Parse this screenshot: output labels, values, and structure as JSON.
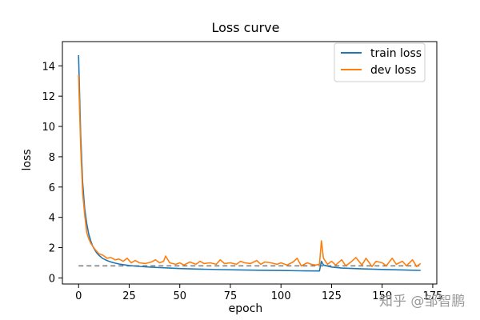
{
  "chart_data": {
    "type": "line",
    "title": "Loss curve",
    "xlabel": "epoch",
    "ylabel": "loss",
    "xlim": [
      -8,
      177
    ],
    "ylim": [
      -0.4,
      15.6
    ],
    "xticks": [
      0,
      25,
      50,
      75,
      100,
      125,
      150,
      175
    ],
    "yticks": [
      0,
      2,
      4,
      6,
      8,
      10,
      12,
      14
    ],
    "grid": false,
    "legend_position": "top-right",
    "series": [
      {
        "name": "train loss",
        "color": "#1f77b4",
        "x": [
          0,
          1,
          2,
          3,
          4,
          5,
          6,
          7,
          8,
          9,
          10,
          12,
          14,
          16,
          18,
          20,
          25,
          30,
          35,
          40,
          45,
          50,
          60,
          70,
          80,
          90,
          100,
          110,
          119,
          120,
          121,
          125,
          130,
          140,
          150,
          160,
          169
        ],
        "y": [
          14.7,
          9.5,
          6.3,
          4.6,
          3.6,
          2.9,
          2.45,
          2.1,
          1.85,
          1.65,
          1.5,
          1.28,
          1.15,
          1.05,
          0.98,
          0.92,
          0.82,
          0.76,
          0.72,
          0.68,
          0.65,
          0.62,
          0.58,
          0.55,
          0.53,
          0.51,
          0.49,
          0.47,
          0.46,
          1.1,
          0.85,
          0.72,
          0.65,
          0.6,
          0.56,
          0.53,
          0.5
        ]
      },
      {
        "name": "dev loss",
        "color": "#ff7f0e",
        "x": [
          0,
          1,
          2,
          3,
          4,
          5,
          6,
          8,
          10,
          12,
          14,
          16,
          18,
          20,
          22,
          24,
          26,
          28,
          30,
          33,
          36,
          38,
          40,
          42,
          43,
          45,
          48,
          50,
          52,
          55,
          58,
          60,
          62,
          65,
          68,
          70,
          72,
          75,
          78,
          80,
          82,
          85,
          88,
          90,
          92,
          95,
          98,
          100,
          103,
          106,
          108,
          110,
          113,
          115,
          117,
          119,
          120,
          121,
          123,
          125,
          127,
          130,
          132,
          135,
          137,
          140,
          142,
          145,
          147,
          150,
          152,
          155,
          157,
          160,
          162,
          165,
          167,
          169
        ],
        "y": [
          13.4,
          8.7,
          5.6,
          4.2,
          3.0,
          2.6,
          2.3,
          1.9,
          1.6,
          1.5,
          1.3,
          1.35,
          1.2,
          1.25,
          1.1,
          1.3,
          1.0,
          1.15,
          1.0,
          0.95,
          1.05,
          1.2,
          1.0,
          1.1,
          1.45,
          1.0,
          0.9,
          1.0,
          0.85,
          1.05,
          0.9,
          1.1,
          0.95,
          1.0,
          0.9,
          1.2,
          0.95,
          1.0,
          0.9,
          1.1,
          1.0,
          0.95,
          1.15,
          0.9,
          1.05,
          1.0,
          0.9,
          1.0,
          0.85,
          1.05,
          1.3,
          0.8,
          1.0,
          0.9,
          0.85,
          0.9,
          2.45,
          1.3,
          0.9,
          1.1,
          0.85,
          1.2,
          0.8,
          1.1,
          1.35,
          0.85,
          1.3,
          0.75,
          1.1,
          1.0,
          0.8,
          1.3,
          0.9,
          1.1,
          0.8,
          1.2,
          0.75,
          0.95
        ]
      }
    ],
    "reference_line": {
      "y": 0.8,
      "x_start": 0,
      "x_end": 169,
      "style": "dashed",
      "color": "#808080"
    }
  },
  "watermark": "知乎 @邹智鹏"
}
